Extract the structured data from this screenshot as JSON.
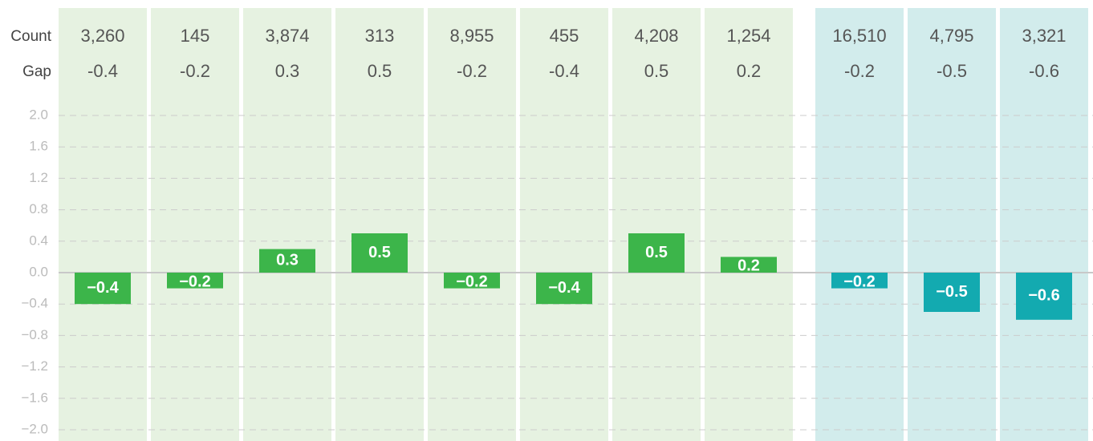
{
  "chart_data": {
    "type": "bar",
    "row_labels": [
      "Count",
      "Gap"
    ],
    "series": [
      {
        "color": "#3cb54a",
        "background": "#e6f2e1",
        "counts": [
          "3,260",
          "145",
          "3,874",
          "313",
          "8,955",
          "455",
          "4,208",
          "1,254"
        ],
        "values": [
          -0.4,
          -0.2,
          0.3,
          0.5,
          -0.2,
          -0.4,
          0.5,
          0.2
        ],
        "value_labels": [
          "−0.4",
          "−0.2",
          "0.3",
          "0.5",
          "−0.2",
          "−0.4",
          "0.5",
          "0.2"
        ]
      },
      {
        "color": "#13aab0",
        "background": "#d2ecec",
        "counts": [
          "16,510",
          "4,795",
          "3,321"
        ],
        "values": [
          -0.2,
          -0.5,
          -0.6
        ],
        "value_labels": [
          "−0.2",
          "−0.5",
          "−0.6"
        ]
      }
    ],
    "ylim": [
      -2.0,
      2.0
    ],
    "yticks": [
      {
        "value": 2.0,
        "label": "2.0"
      },
      {
        "value": 1.6,
        "label": "1.6"
      },
      {
        "value": 1.2,
        "label": "1.2"
      },
      {
        "value": 0.8,
        "label": "0.8"
      },
      {
        "value": 0.4,
        "label": "0.4"
      },
      {
        "value": 0.0,
        "label": "0.0"
      },
      {
        "value": -0.4,
        "label": "−0.4"
      },
      {
        "value": -0.8,
        "label": "−0.8"
      },
      {
        "value": -1.2,
        "label": "−1.2"
      },
      {
        "value": -1.6,
        "label": "−1.6"
      },
      {
        "value": -2.0,
        "label": "−2.0"
      }
    ],
    "grid": true
  }
}
